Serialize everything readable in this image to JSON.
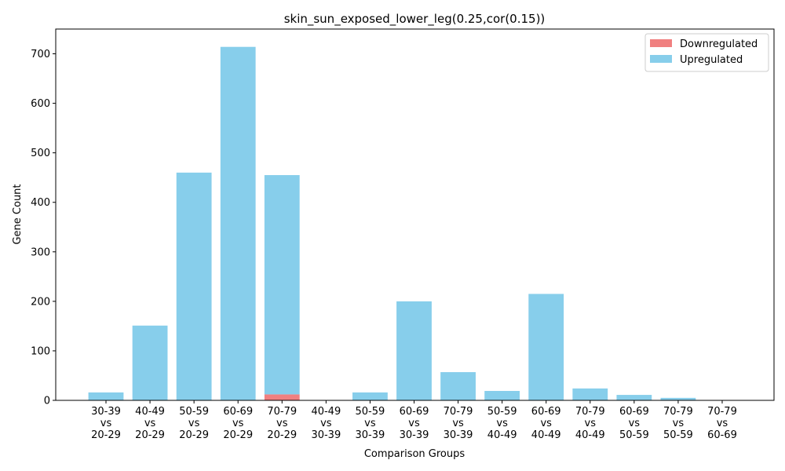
{
  "chart_data": {
    "type": "bar",
    "stacked": true,
    "title": "skin_sun_exposed_lower_leg(0.25,cor(0.15))",
    "xlabel": "Comparison Groups",
    "ylabel": "Gene Count",
    "ylim": [
      0,
      750
    ],
    "yticks": [
      0,
      100,
      200,
      300,
      400,
      500,
      600,
      700
    ],
    "grid": false,
    "legend_position": "top-right",
    "categories": [
      [
        "30-39",
        "vs",
        "20-29"
      ],
      [
        "40-49",
        "vs",
        "20-29"
      ],
      [
        "50-59",
        "vs",
        "20-29"
      ],
      [
        "60-69",
        "vs",
        "20-29"
      ],
      [
        "70-79",
        "vs",
        "20-29"
      ],
      [
        "40-49",
        "vs",
        "30-39"
      ],
      [
        "50-59",
        "vs",
        "30-39"
      ],
      [
        "60-69",
        "vs",
        "30-39"
      ],
      [
        "70-79",
        "vs",
        "30-39"
      ],
      [
        "50-59",
        "vs",
        "40-49"
      ],
      [
        "60-69",
        "vs",
        "40-49"
      ],
      [
        "70-79",
        "vs",
        "40-49"
      ],
      [
        "60-69",
        "vs",
        "50-59"
      ],
      [
        "70-79",
        "vs",
        "50-59"
      ],
      [
        "70-79",
        "vs",
        "60-69"
      ]
    ],
    "series": [
      {
        "name": "Downregulated",
        "color": "#f08080",
        "values": [
          0,
          0,
          0,
          0,
          12,
          0,
          0,
          0,
          0,
          0,
          0,
          0,
          0,
          0,
          0
        ]
      },
      {
        "name": "Upregulated",
        "color": "#87ceeb",
        "values": [
          16,
          151,
          460,
          714,
          443,
          0,
          16,
          200,
          57,
          19,
          215,
          24,
          11,
          5,
          0
        ]
      }
    ]
  }
}
